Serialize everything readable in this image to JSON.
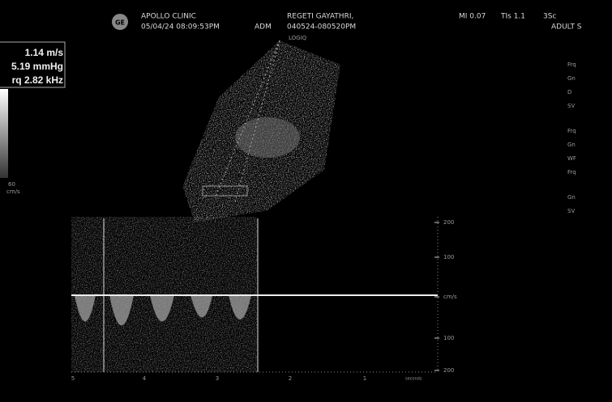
{
  "header": {
    "clinic": "APOLLO CLINIC",
    "datetime": "05/04/24 08:09:53PM",
    "operator": "ADM",
    "patient": "REGETI GAYATHRI,",
    "exam_id": "040524-080520PM",
    "mi": "MI 0.07",
    "tis": "TIs 1.1",
    "probe": "3Sc",
    "preset": "ADULT S",
    "logo": "GE",
    "device": "LOGIQ"
  },
  "measurements": [
    "1.14 m/s",
    "5.19 mmHg",
    "rq  2.82 kHz"
  ],
  "color_scale": {
    "value": "60",
    "unit": "cm/s"
  },
  "doppler": {
    "scale_labels": [
      "200",
      "100",
      "cm/s",
      "100",
      "200"
    ],
    "time_labels": [
      "5",
      "4",
      "3",
      "2",
      "1"
    ],
    "time_unit": "seconds"
  },
  "side_panel": [
    "Frq",
    "Gn",
    "D",
    "SV",
    "Frq",
    "Gn",
    "WF",
    "Frq",
    "Gn",
    "SV"
  ]
}
